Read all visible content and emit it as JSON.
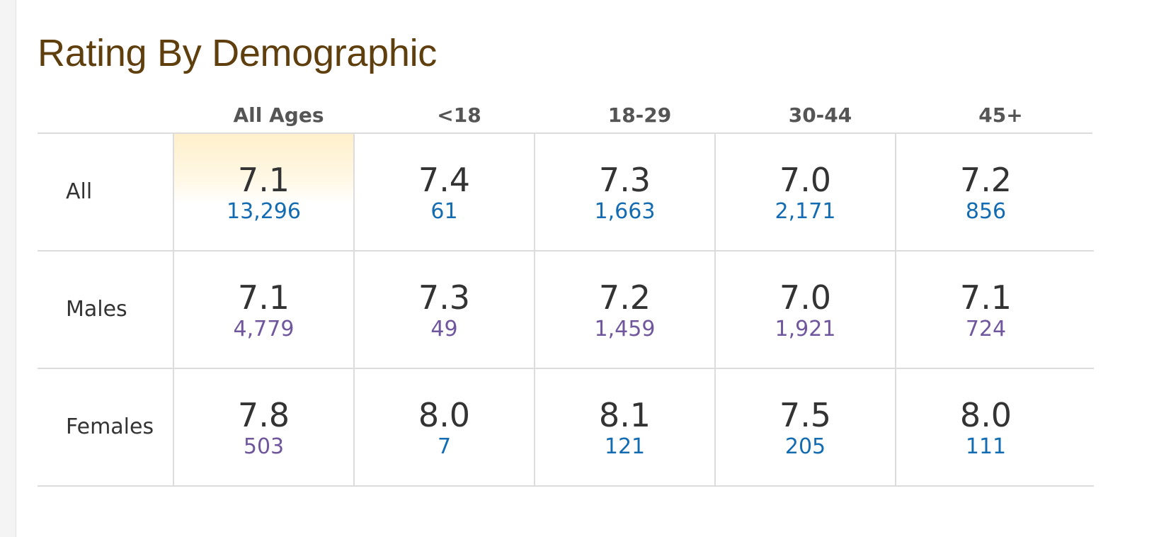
{
  "title": "Rating By Demographic",
  "columns": [
    "All Ages",
    "<18",
    "18-29",
    "30-44",
    "45+"
  ],
  "colors": {
    "title": "#5e3f0d",
    "link": "#136cb2",
    "visited_link": "#70579d",
    "highlight": "#fff0cc"
  },
  "rows": [
    {
      "label": "All",
      "cells": [
        {
          "rating": "7.1",
          "votes": "13,296",
          "link_state": "blue"
        },
        {
          "rating": "7.4",
          "votes": "61",
          "link_state": "blue"
        },
        {
          "rating": "7.3",
          "votes": "1,663",
          "link_state": "blue"
        },
        {
          "rating": "7.0",
          "votes": "2,171",
          "link_state": "blue"
        },
        {
          "rating": "7.2",
          "votes": "856",
          "link_state": "blue"
        }
      ]
    },
    {
      "label": "Males",
      "cells": [
        {
          "rating": "7.1",
          "votes": "4,779",
          "link_state": "purple"
        },
        {
          "rating": "7.3",
          "votes": "49",
          "link_state": "purple"
        },
        {
          "rating": "7.2",
          "votes": "1,459",
          "link_state": "purple"
        },
        {
          "rating": "7.0",
          "votes": "1,921",
          "link_state": "purple"
        },
        {
          "rating": "7.1",
          "votes": "724",
          "link_state": "purple"
        }
      ]
    },
    {
      "label": "Females",
      "cells": [
        {
          "rating": "7.8",
          "votes": "503",
          "link_state": "purple"
        },
        {
          "rating": "8.0",
          "votes": "7",
          "link_state": "blue"
        },
        {
          "rating": "8.1",
          "votes": "121",
          "link_state": "blue"
        },
        {
          "rating": "7.5",
          "votes": "205",
          "link_state": "blue"
        },
        {
          "rating": "8.0",
          "votes": "111",
          "link_state": "blue"
        }
      ]
    }
  ]
}
